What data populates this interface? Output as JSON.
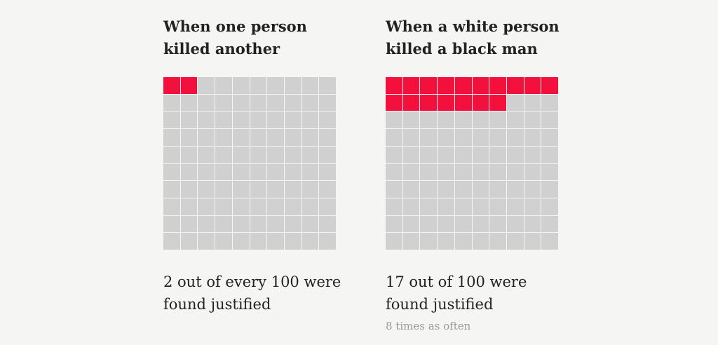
{
  "chart_data": [
    {
      "type": "waffle",
      "title": "When one person killed another",
      "total": 100,
      "highlighted": 2,
      "grid": [
        10,
        10
      ],
      "caption": "2 out of every 100 were found justified",
      "highlight_color": "#f4103c",
      "base_color": "#d0d0d0"
    },
    {
      "type": "waffle",
      "title": "When a white person killed a black man",
      "total": 100,
      "highlighted": 17,
      "grid": [
        10,
        10
      ],
      "caption": "17 out of 100 were found justified",
      "note": "8 times as often",
      "highlight_color": "#f4103c",
      "base_color": "#d0d0d0"
    }
  ]
}
